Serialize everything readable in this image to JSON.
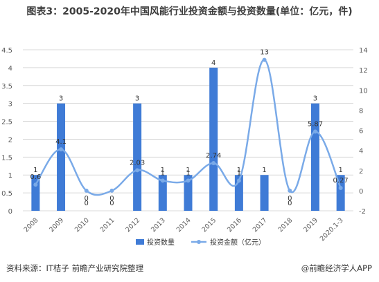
{
  "title": "图表3：2005-2020年中国风能行业投资金额与投资数量(单位：亿元，件)",
  "source": "资料来源：IT桔子 前瞻产业研究院整理",
  "brand": "@前瞻经济学人APP",
  "colors": {
    "bar": "#3f7bd6",
    "line": "#7aaae8",
    "axis_text": "#595959",
    "grid": "#d9d9d9"
  },
  "chart_data": {
    "type": "bar",
    "categories": [
      "2008",
      "2009",
      "2010",
      "2011",
      "2012",
      "2013",
      "2014",
      "2015",
      "2016",
      "2017",
      "2018",
      "2019",
      "2020.1-3"
    ],
    "series": [
      {
        "name": "投资数量",
        "type": "bar",
        "axis": "left",
        "values": [
          1,
          3,
          0,
          0,
          3,
          1,
          1,
          4,
          1,
          1,
          0,
          3,
          1
        ]
      },
      {
        "name": "投资金额（亿元）",
        "type": "line",
        "axis": "right",
        "smooth": true,
        "values": [
          0.6,
          4.1,
          0,
          0,
          2.03,
          1,
          1,
          2.74,
          1,
          13,
          0,
          5.87,
          0.27
        ]
      }
    ],
    "ylim_left": [
      0,
      4.5
    ],
    "yticks_left": [
      "0",
      "0.5",
      "1",
      "1.5",
      "2",
      "2.5",
      "3",
      "3.5",
      "4",
      "4.5"
    ],
    "ylim_right": [
      -2,
      14
    ],
    "yticks_right": [
      "-2",
      "0",
      "2",
      "4",
      "6",
      "8",
      "10",
      "12",
      "14"
    ],
    "bar_labels": [
      "1",
      "3",
      "0",
      "0",
      "3",
      "1",
      "1",
      "4",
      "1",
      "1",
      "0",
      "3",
      "1"
    ],
    "line_labels": [
      "0.6",
      "4.1",
      "0",
      "0",
      "2.03",
      "1",
      "1",
      "2.74",
      "1",
      "13",
      "0",
      "5.87",
      "0.27"
    ],
    "grid": true,
    "legend_position": "bottom"
  }
}
